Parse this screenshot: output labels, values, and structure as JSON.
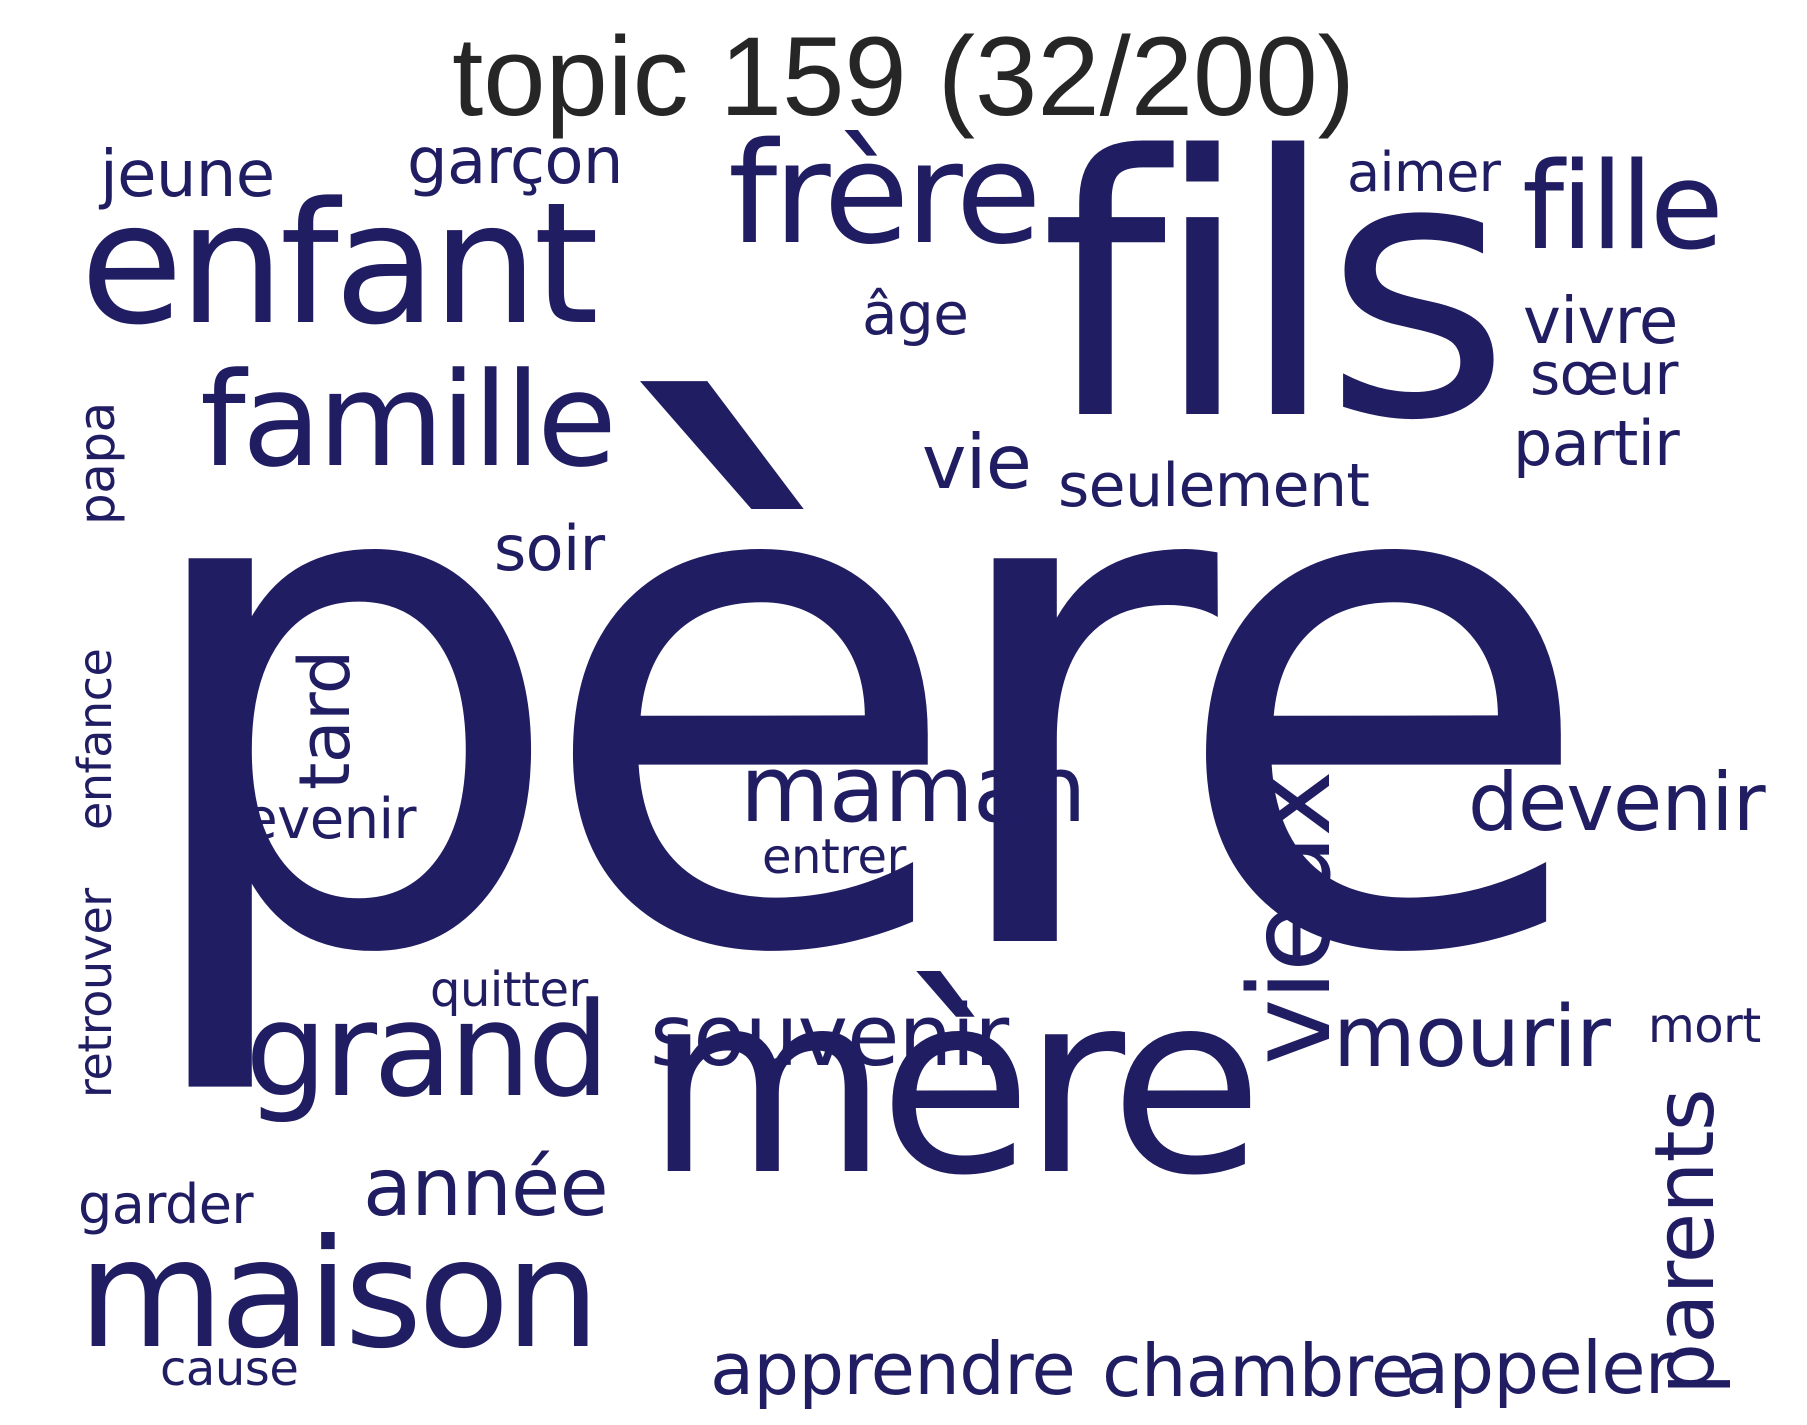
{
  "title": "topic 159 (32/200)",
  "word_color": "#211d63",
  "title_color": "#262626",
  "words": {
    "pere": "père",
    "fils": "fils",
    "mere": "mère",
    "enfant": "enfant",
    "famille": "famille",
    "frere": "frère",
    "fille": "fille",
    "maison": "maison",
    "grand": "grand",
    "vieux": "vieux",
    "maman": "maman",
    "devenir": "devenir",
    "souvenir": "souvenir",
    "mourir": "mourir",
    "annee": "année",
    "apprendre": "apprendre",
    "chambre": "chambre",
    "appeler": "appeler",
    "parents": "parents",
    "jeune": "jeune",
    "garcon": "garçon",
    "aimer": "aimer",
    "age": "âge",
    "vivre": "vivre",
    "soeur": "sœur",
    "partir": "partir",
    "vie": "vie",
    "seulement": "seulement",
    "soir": "soir",
    "papa": "papa",
    "tard": "tard",
    "revenir": "revenir",
    "entrer": "entrer",
    "enfance": "enfance",
    "retrouver": "retrouver",
    "quitter": "quitter",
    "mort": "mort",
    "garder": "garder",
    "cause": "cause"
  }
}
